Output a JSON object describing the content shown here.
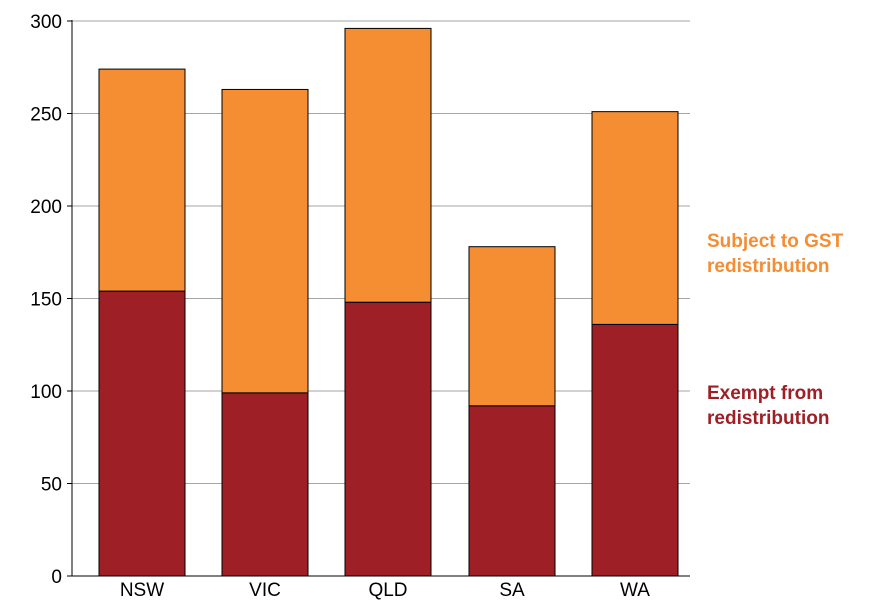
{
  "chart_data": {
    "type": "bar",
    "stacked": true,
    "categories": [
      "NSW",
      "VIC",
      "QLD",
      "SA",
      "WA"
    ],
    "series": [
      {
        "name": "Exempt from redistribution",
        "values": [
          154,
          99,
          148,
          92,
          136
        ],
        "color": "#9e2026"
      },
      {
        "name": "Subject to GST redistribution",
        "values": [
          120,
          164,
          148,
          86,
          115
        ],
        "color": "#f58d33"
      }
    ],
    "ylim": [
      0,
      300
    ],
    "yticks": [
      0,
      50,
      100,
      150,
      200,
      250,
      300
    ],
    "grid": true,
    "legend": [
      {
        "lines": [
          "Subject to GST",
          "redistribution"
        ],
        "color": "#f58d33",
        "placement": "right-upper"
      },
      {
        "lines": [
          "Exempt from",
          "redistribution"
        ],
        "color": "#9e2026",
        "placement": "right-lower"
      }
    ]
  }
}
